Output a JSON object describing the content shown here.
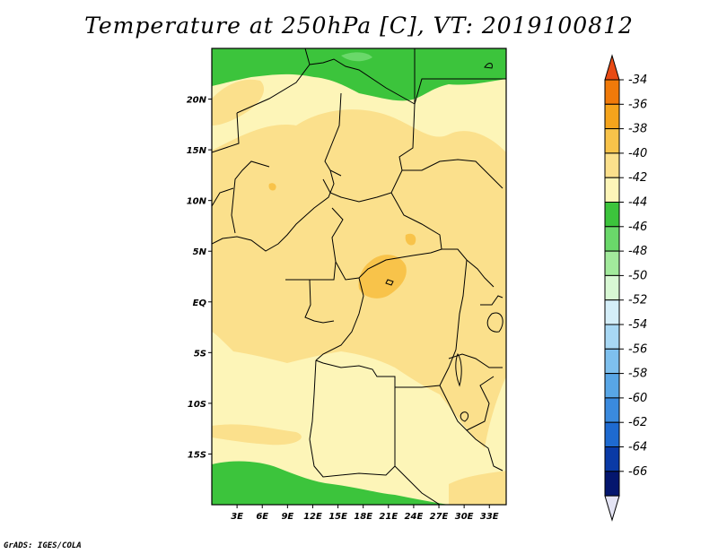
{
  "title": "Temperature at 250hPa [C], VT: 2019100812",
  "credit": "GrADS: IGES/COLA",
  "map": {
    "lat_labels": [
      "20N",
      "15N",
      "10N",
      "5N",
      "EQ",
      "5S",
      "10S",
      "15S"
    ],
    "lat_values": [
      20,
      15,
      10,
      5,
      0,
      -5,
      -10,
      -15
    ],
    "lon_labels": [
      "3E",
      "6E",
      "9E",
      "12E",
      "15E",
      "18E",
      "21E",
      "24E",
      "27E",
      "30E",
      "33E"
    ],
    "lon_values": [
      3,
      6,
      9,
      12,
      15,
      18,
      21,
      24,
      27,
      30,
      33
    ],
    "lon_range": [
      0,
      35
    ],
    "lat_range": [
      -20,
      25
    ]
  },
  "colorbar": {
    "labels": [
      "-34",
      "-36",
      "-38",
      "-40",
      "-42",
      "-44",
      "-46",
      "-48",
      "-50",
      "-52",
      "-54",
      "-56",
      "-58",
      "-60",
      "-62",
      "-64",
      "-66"
    ],
    "colors": [
      "#e84a14",
      "#f07a0a",
      "#f5a41c",
      "#f8c34a",
      "#fbe08c",
      "#fdf5b8",
      "#3cc43c",
      "#6ad86a",
      "#a2ea9c",
      "#d8f8d4",
      "#d4eef8",
      "#a8d8f4",
      "#7ec0ee",
      "#58a6e6",
      "#3a8ade",
      "#1e6ad0",
      "#0a3aa6",
      "#04166e",
      "#e4e4f4"
    ]
  }
}
